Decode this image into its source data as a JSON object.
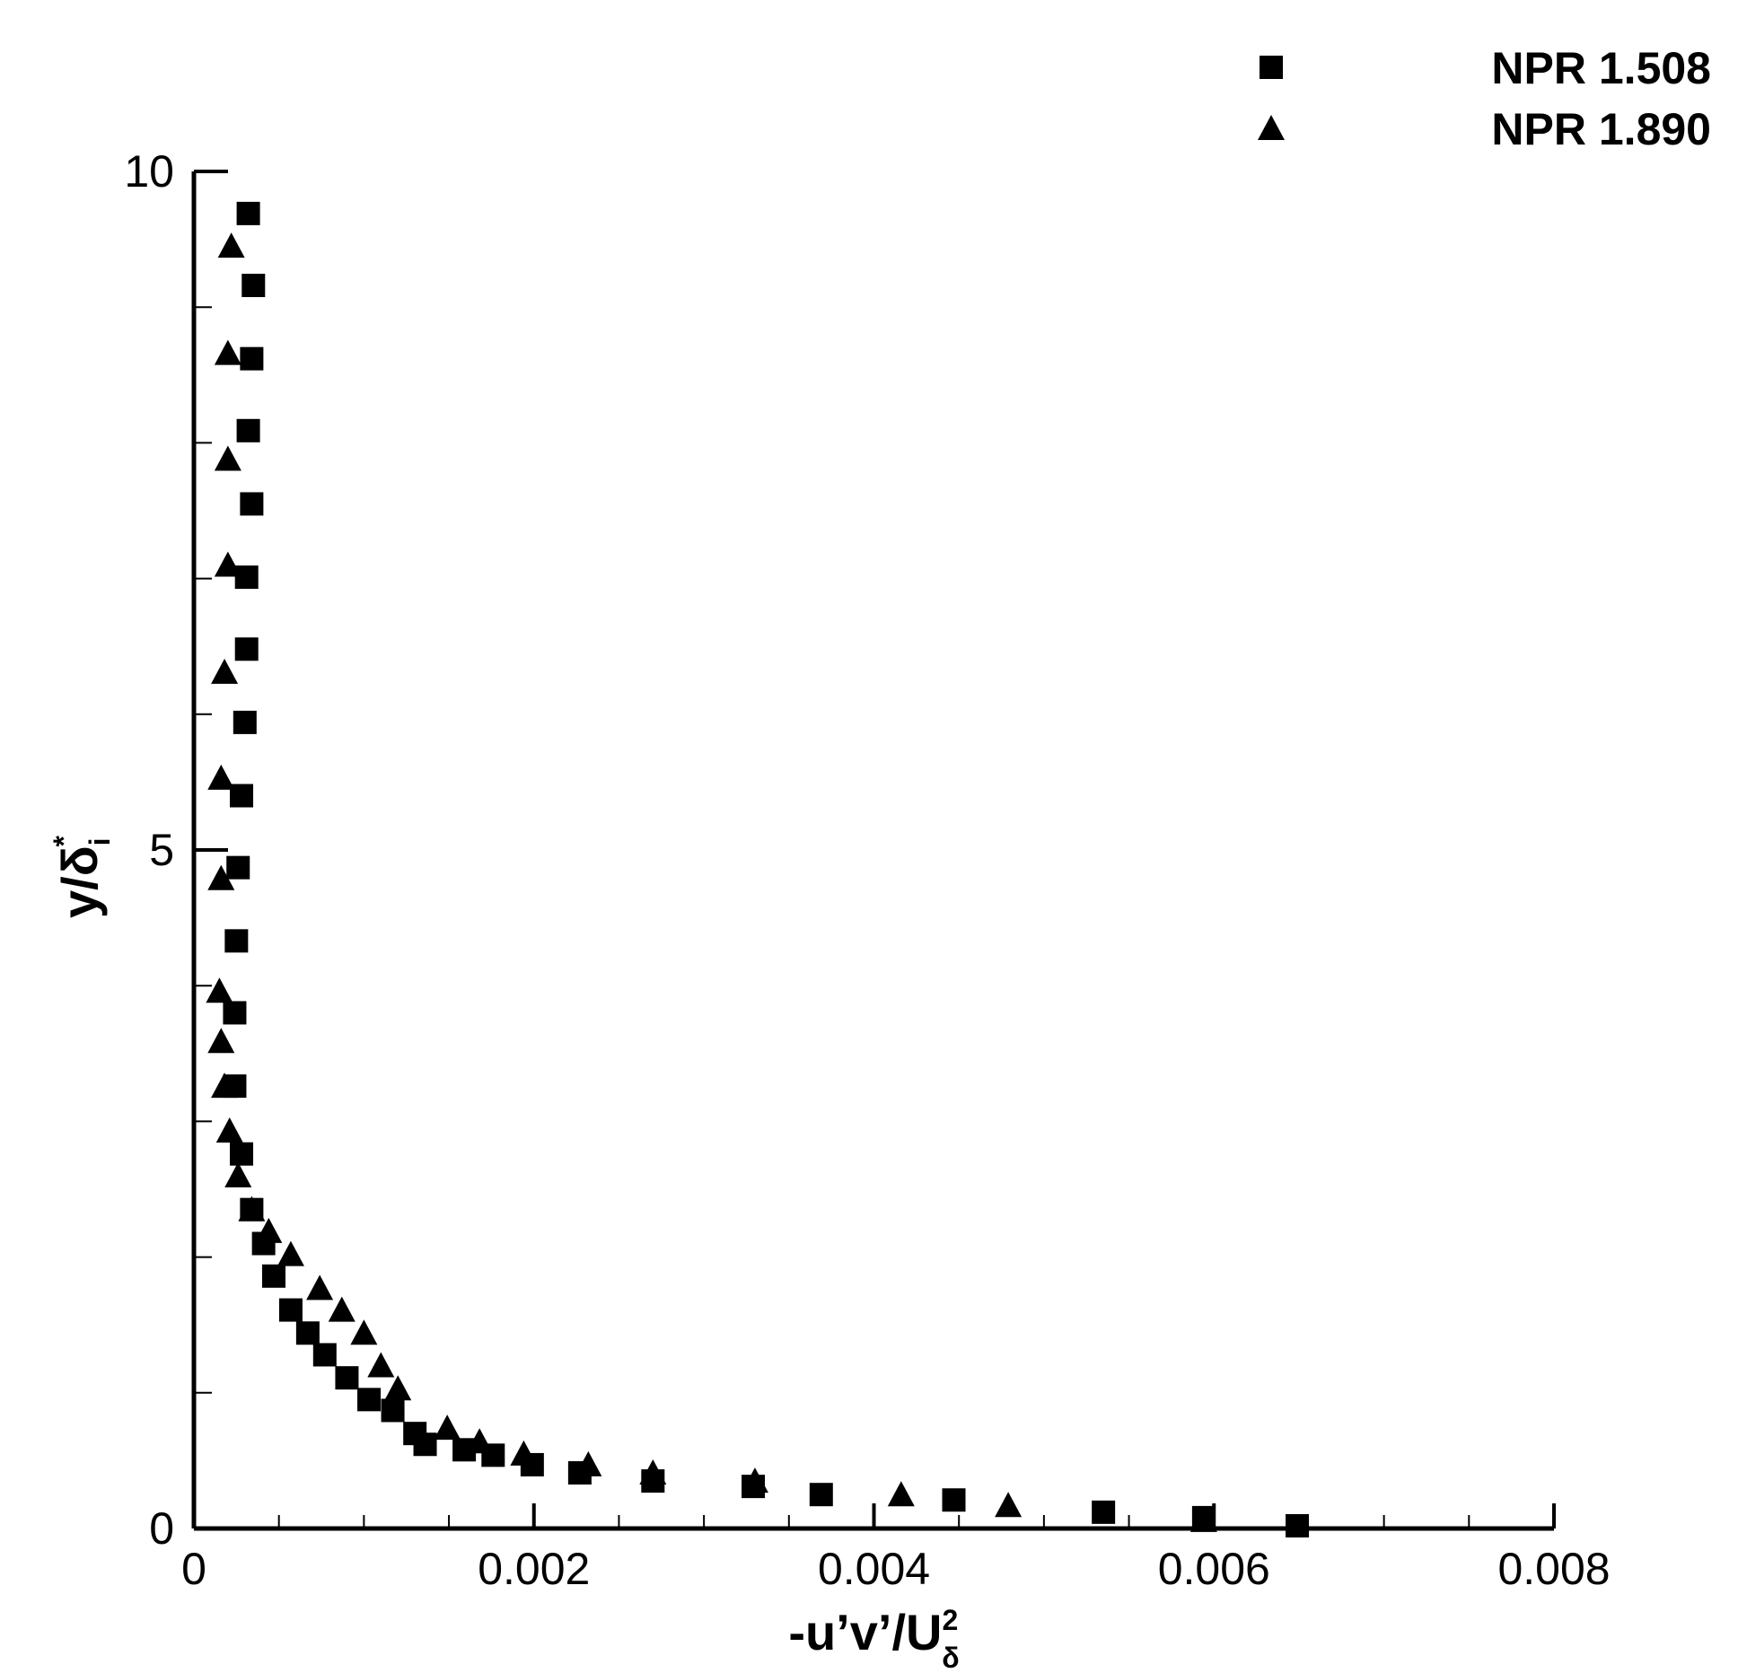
{
  "chart_data": {
    "type": "scatter",
    "xlabel": "-u’v’/U",
    "xlabel_sub": "δ",
    "xlabel_sup": "2",
    "ylabel": "y/δ",
    "ylabel_sub": "i",
    "ylabel_sup": "*",
    "xlim": [
      0,
      0.008
    ],
    "ylim": [
      0,
      10
    ],
    "xticks": [
      0,
      0.002,
      0.004,
      0.006,
      0.008
    ],
    "yticks": [
      0,
      5,
      10
    ],
    "xminorticks": [
      0.0005,
      0.001,
      0.0015,
      0.0025,
      0.003,
      0.0035,
      0.0045,
      0.005,
      0.0055,
      0.0065,
      0.007,
      0.0075
    ],
    "yminorticks": [
      1,
      2,
      3,
      4,
      6,
      7,
      8,
      9
    ],
    "legend": "upper right",
    "series": [
      {
        "name": "NPR 1.508",
        "marker": "square",
        "color": "#000000",
        "x": [
          0.00032,
          0.00035,
          0.00034,
          0.00032,
          0.00034,
          0.00031,
          0.00031,
          0.0003,
          0.00028,
          0.00026,
          0.00025,
          0.00024,
          0.00024,
          0.00028,
          0.00034,
          0.00041,
          0.00047,
          0.00057,
          0.00067,
          0.00077,
          0.0009,
          0.00103,
          0.00117,
          0.0013,
          0.00136,
          0.00159,
          0.00176,
          0.00199,
          0.00227,
          0.0027,
          0.00329,
          0.00369,
          0.00447,
          0.00535,
          0.00594,
          0.00649
        ],
        "values": [
          9.69,
          9.16,
          8.62,
          8.09,
          7.55,
          7.01,
          6.48,
          5.94,
          5.4,
          4.87,
          4.33,
          3.8,
          3.26,
          2.76,
          2.35,
          2.1,
          1.86,
          1.61,
          1.44,
          1.28,
          1.11,
          0.95,
          0.87,
          0.7,
          0.62,
          0.58,
          0.54,
          0.47,
          0.41,
          0.35,
          0.31,
          0.25,
          0.21,
          0.12,
          0.08,
          0.02
        ]
      },
      {
        "name": "NPR 1.890",
        "marker": "triangle",
        "color": "#000000",
        "x": [
          0.00022,
          0.0002,
          0.0002,
          0.0002,
          0.00018,
          0.00016,
          0.00016,
          0.00015,
          0.00016,
          0.00018,
          0.00021,
          0.00026,
          0.00034,
          0.00044,
          0.00057,
          0.00074,
          0.00087,
          0.001,
          0.0011,
          0.0012,
          0.00149,
          0.00168,
          0.00194,
          0.00232,
          0.0027,
          0.0033,
          0.00416,
          0.00479,
          0.00594
        ],
        "values": [
          9.45,
          8.66,
          7.88,
          7.1,
          6.31,
          5.53,
          4.79,
          3.96,
          3.59,
          3.26,
          2.93,
          2.6,
          2.35,
          2.19,
          2.02,
          1.77,
          1.61,
          1.44,
          1.2,
          1.03,
          0.74,
          0.64,
          0.55,
          0.47,
          0.41,
          0.35,
          0.25,
          0.17,
          0.06
        ]
      }
    ]
  }
}
